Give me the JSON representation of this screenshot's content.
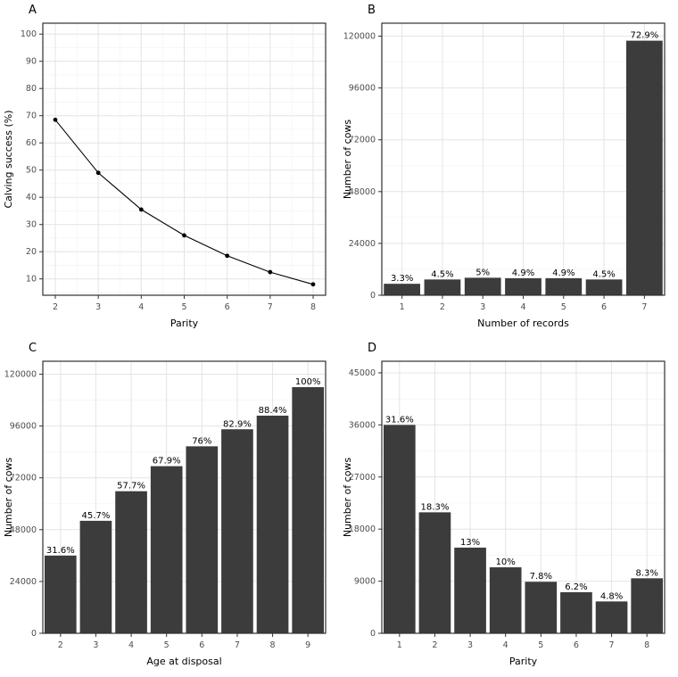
{
  "figure": {
    "panel_fill": "#ffffff",
    "bar_color": "#3c3c3c",
    "line_color": "#000000",
    "grid_major_color": "#e4e4e4",
    "grid_minor_color": "#f2f2f2",
    "panel_border_color": "#2f2f2f",
    "tick_color": "#333333"
  },
  "panels": [
    {
      "label": "A"
    },
    {
      "label": "B"
    },
    {
      "label": "C"
    },
    {
      "label": "D"
    }
  ],
  "chart_data": [
    {
      "type": "line",
      "title": "",
      "x": [
        2,
        3,
        4,
        5,
        6,
        7,
        8
      ],
      "values": [
        68.5,
        49,
        35.5,
        26,
        18.5,
        12.5,
        8
      ],
      "xlabel": "Parity",
      "ylabel": "Calving success (%)",
      "ylim": [
        4,
        104
      ],
      "yticks": [
        10,
        20,
        30,
        40,
        50,
        60,
        70,
        80,
        90,
        100
      ],
      "grid": true,
      "legend": "none"
    },
    {
      "type": "bar",
      "title": "",
      "categories": [
        "1",
        "2",
        "3",
        "4",
        "5",
        "6",
        "7"
      ],
      "values": [
        5300,
        7300,
        8100,
        7900,
        7900,
        7300,
        117900
      ],
      "bar_labels": [
        "3.3%",
        "4.5%",
        "5%",
        "4.9%",
        "4.9%",
        "4.5%",
        "72.9%"
      ],
      "xlabel": "Number of records",
      "ylabel": "Number of cows",
      "ylim": [
        0,
        126000
      ],
      "yticks": [
        0,
        24000,
        48000,
        72000,
        96000,
        120000
      ],
      "grid": true,
      "legend": "none"
    },
    {
      "type": "bar",
      "title": "",
      "categories": [
        "2",
        "3",
        "4",
        "5",
        "6",
        "7",
        "8",
        "9"
      ],
      "values": [
        36000,
        52100,
        65800,
        77400,
        86600,
        94500,
        100800,
        114000
      ],
      "bar_labels": [
        "31.6%",
        "45.7%",
        "57.7%",
        "67.9%",
        "76%",
        "82.9%",
        "88.4%",
        "100%"
      ],
      "xlabel": "Age at disposal",
      "ylabel": "Number of cows",
      "ylim": [
        0,
        126000
      ],
      "yticks": [
        0,
        24000,
        48000,
        72000,
        96000,
        120000
      ],
      "grid": true,
      "legend": "none"
    },
    {
      "type": "bar",
      "title": "",
      "categories": [
        "1",
        "2",
        "3",
        "4",
        "5",
        "6",
        "7",
        "8"
      ],
      "values": [
        36000,
        20900,
        14800,
        11400,
        8900,
        7100,
        5500,
        9500
      ],
      "bar_labels": [
        "31.6%",
        "18.3%",
        "13%",
        "10%",
        "7.8%",
        "6.2%",
        "4.8%",
        "8.3%"
      ],
      "xlabel": "Parity",
      "ylabel": "Number of cows",
      "ylim": [
        0,
        47000
      ],
      "yticks": [
        0,
        9000,
        18000,
        27000,
        36000,
        45000
      ],
      "grid": true,
      "legend": "none"
    }
  ]
}
